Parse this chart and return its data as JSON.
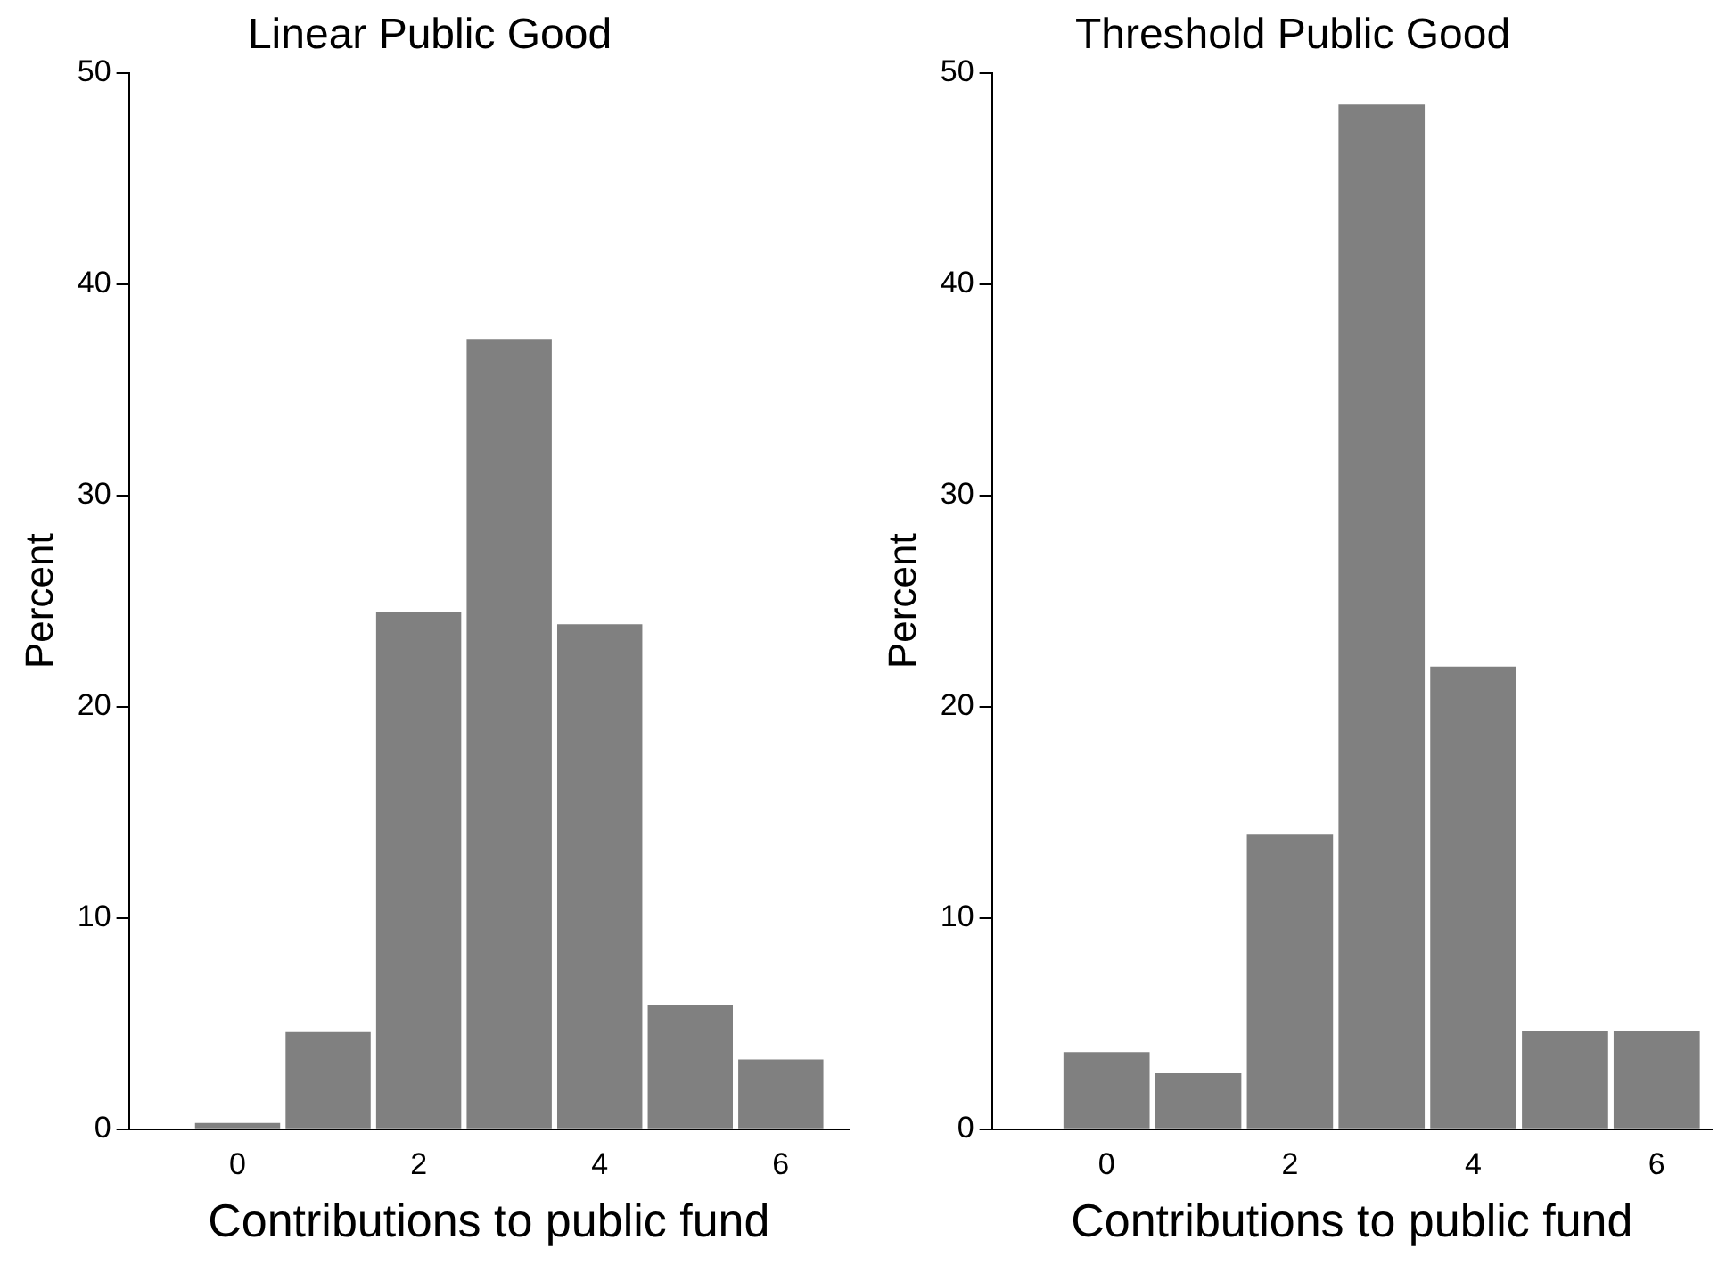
{
  "chart_data": [
    {
      "type": "histogram",
      "title": "Linear Public Good",
      "xlabel": "Contributions to public fund",
      "ylabel": "Percent",
      "bins": [
        -0.5,
        0.5,
        1.5,
        2.5,
        3.5,
        4.5,
        5.5,
        6.5
      ],
      "values": [
        0.3,
        4.6,
        24.5,
        37.4,
        23.9,
        5.9,
        3.3
      ],
      "color": "#808080",
      "xlim": [
        -1.2,
        6.75
      ],
      "ylim": [
        0,
        50
      ],
      "xticks": [
        0,
        2,
        4,
        6
      ],
      "yticks": [
        0,
        10,
        20,
        30,
        40,
        50
      ],
      "grid": false,
      "legend": false
    },
    {
      "type": "histogram",
      "title": "Threshold Public Good",
      "xlabel": "Contributions to public fund",
      "ylabel": "Percent",
      "bins": [
        -0.5,
        0.5,
        1.5,
        2.5,
        3.5,
        4.5,
        5.5,
        6.5
      ],
      "values": [
        3.65,
        2.65,
        13.95,
        48.5,
        21.9,
        4.65,
        4.65
      ],
      "color": "#808080",
      "xlim": [
        -1.25,
        6.6
      ],
      "ylim": [
        0,
        50
      ],
      "xticks": [
        0,
        2,
        4,
        6
      ],
      "yticks": [
        0,
        10,
        20,
        30,
        40,
        50
      ],
      "grid": false,
      "legend": false
    }
  ]
}
